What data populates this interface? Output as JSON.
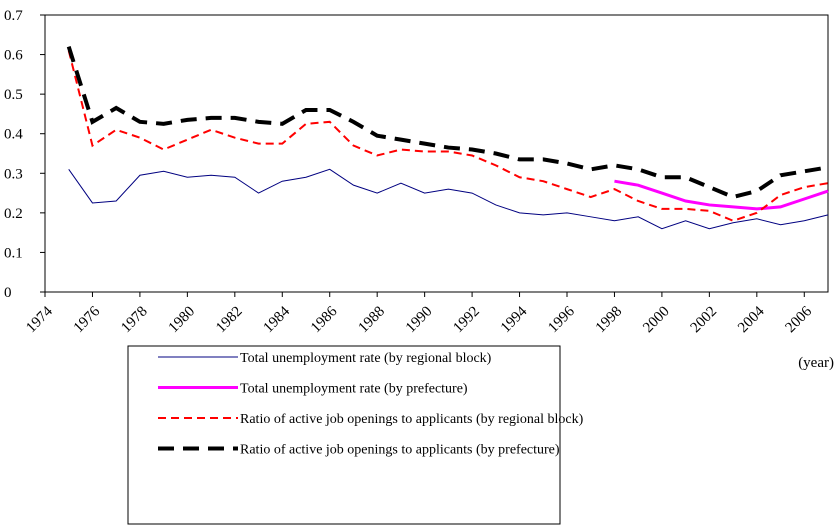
{
  "chart_data": {
    "type": "line",
    "x_unit_label": "(year)",
    "x": [
      1975,
      1976,
      1977,
      1978,
      1979,
      1980,
      1981,
      1982,
      1983,
      1984,
      1985,
      1986,
      1987,
      1988,
      1989,
      1990,
      1991,
      1992,
      1993,
      1994,
      1995,
      1996,
      1997,
      1998,
      1999,
      2000,
      2001,
      2002,
      2003,
      2004,
      2005,
      2006,
      2007
    ],
    "xlim": [
      1974,
      2007
    ],
    "xticks": [
      1974,
      1976,
      1978,
      1980,
      1982,
      1984,
      1986,
      1988,
      1990,
      1992,
      1994,
      1996,
      1998,
      2000,
      2002,
      2004,
      2006
    ],
    "ylim": [
      0,
      0.7
    ],
    "yticks": [
      0,
      0.1,
      0.2,
      0.3,
      0.4,
      0.5,
      0.6,
      0.7
    ],
    "series": [
      {
        "name": "Total unemployment rate (by regional block)",
        "color": "#000080",
        "style": "solid",
        "width": 1,
        "values": [
          0.31,
          0.225,
          0.23,
          0.295,
          0.305,
          0.29,
          0.295,
          0.29,
          0.25,
          0.28,
          0.29,
          0.31,
          0.27,
          0.25,
          0.275,
          0.25,
          0.26,
          0.25,
          0.22,
          0.2,
          0.195,
          0.2,
          0.19,
          0.18,
          0.19,
          0.16,
          0.18,
          0.16,
          0.175,
          0.185,
          0.17,
          0.18,
          0.195
        ]
      },
      {
        "name": "Total unemployment rate (by prefecture)",
        "color": "#ff00ff",
        "style": "solid",
        "width": 3,
        "values": [
          null,
          null,
          null,
          null,
          null,
          null,
          null,
          null,
          null,
          null,
          null,
          null,
          null,
          null,
          null,
          null,
          null,
          null,
          null,
          null,
          null,
          null,
          null,
          0.28,
          0.27,
          0.25,
          0.23,
          0.22,
          0.215,
          0.21,
          0.215,
          0.235,
          0.255
        ]
      },
      {
        "name": "Ratio of active job openings to applicants (by regional block)",
        "color": "#ff0000",
        "style": "dashed",
        "width": 2,
        "values": [
          0.61,
          0.37,
          0.41,
          0.39,
          0.36,
          0.385,
          0.41,
          0.39,
          0.375,
          0.375,
          0.425,
          0.43,
          0.37,
          0.345,
          0.36,
          0.355,
          0.355,
          0.345,
          0.32,
          0.29,
          0.28,
          0.26,
          0.24,
          0.26,
          0.23,
          0.21,
          0.21,
          0.205,
          0.18,
          0.2,
          0.245,
          0.265,
          0.275
        ]
      },
      {
        "name": "Ratio of active job openings to applicants (by prefecture)",
        "color": "#000000",
        "style": "longdash",
        "width": 4,
        "values": [
          0.62,
          0.43,
          0.465,
          0.43,
          0.425,
          0.435,
          0.44,
          0.44,
          0.43,
          0.425,
          0.46,
          0.46,
          0.43,
          0.395,
          0.385,
          0.375,
          0.365,
          0.36,
          0.35,
          0.335,
          0.335,
          0.325,
          0.31,
          0.32,
          0.31,
          0.29,
          0.29,
          0.265,
          0.24,
          0.255,
          0.295,
          0.305,
          0.315
        ]
      }
    ]
  }
}
